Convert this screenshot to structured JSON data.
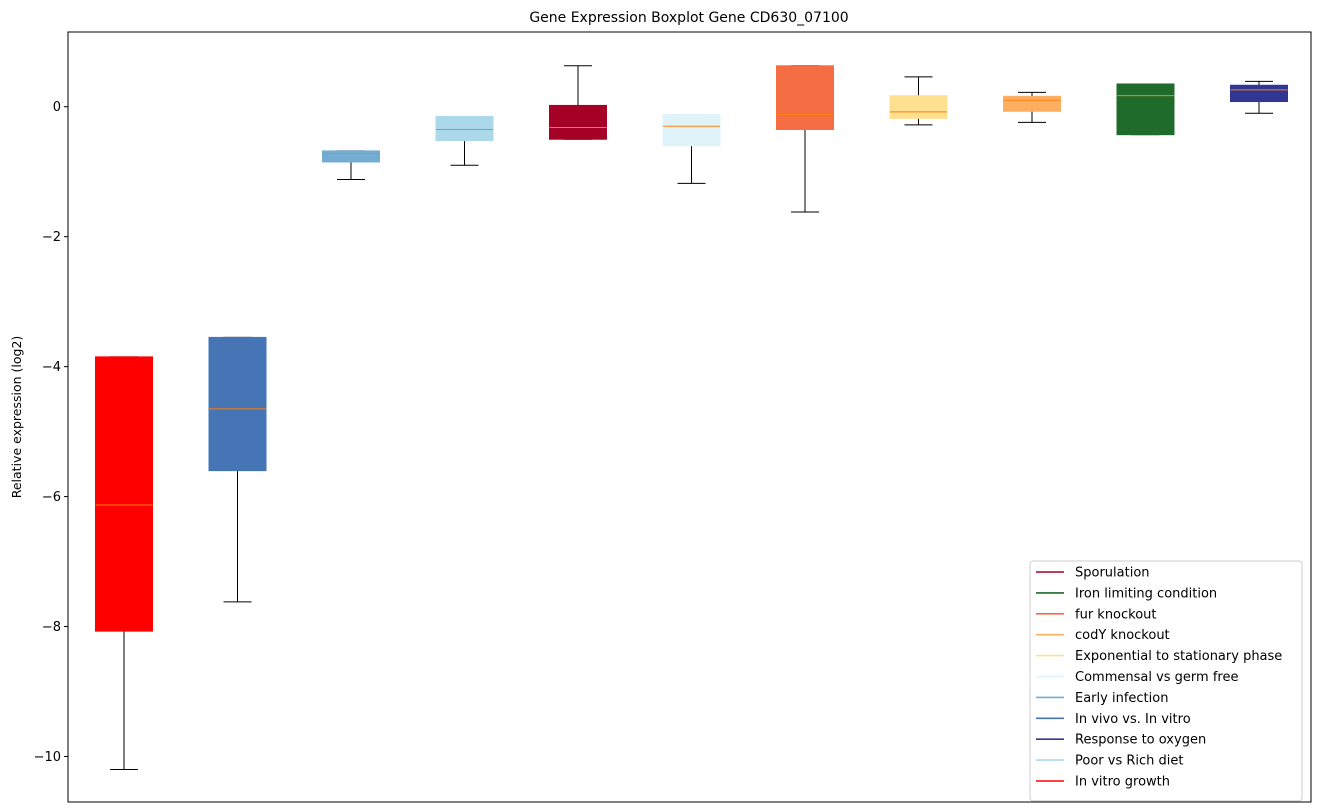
{
  "chart_data": {
    "type": "box",
    "title": "Gene Expression Boxplot Gene CD630_07100",
    "xlabel": "",
    "ylabel": "Relative expression (log2)",
    "ylim": [
      -10.7,
      1.15
    ],
    "yticks": [
      0,
      -2,
      -4,
      -6,
      -8,
      -10
    ],
    "ytick_labels": [
      "0",
      "−2",
      "−4",
      "−6",
      "−8",
      "−10"
    ],
    "median_color": "#ff7f0e",
    "legend_position": "lower right",
    "boxes": [
      {
        "group": "In vitro growth",
        "color": "#ff0000",
        "whislo": -10.2,
        "q1": -8.07,
        "med": -6.13,
        "q3": -3.85,
        "whishi": -3.85
      },
      {
        "group": "In vivo vs. In vitro",
        "color": "#4575b4",
        "whislo": -7.62,
        "q1": -5.6,
        "med": -4.65,
        "q3": -3.55,
        "whishi": -3.55
      },
      {
        "group": "Early infection",
        "color": "#74add1",
        "whislo": -1.12,
        "q1": -0.85,
        "med": -0.72,
        "q3": -0.68,
        "whishi": -0.68
      },
      {
        "group": "Poor vs Rich diet",
        "color": "#abd9e9",
        "whislo": -0.9,
        "q1": -0.52,
        "med": -0.35,
        "q3": -0.15,
        "whishi": -0.15
      },
      {
        "group": "Sporulation",
        "color": "#a50026",
        "whislo": -0.5,
        "q1": -0.5,
        "med": -0.32,
        "q3": 0.02,
        "whishi": 0.63
      },
      {
        "group": "Commensal vs germ free",
        "color": "#e0f3f8",
        "whislo": -1.18,
        "q1": -0.6,
        "med": -0.3,
        "q3": -0.12,
        "whishi": -0.12
      },
      {
        "group": "fur knockout",
        "color": "#f46d43",
        "whislo": -1.62,
        "q1": -0.35,
        "med": -0.12,
        "q3": 0.63,
        "whishi": 0.63
      },
      {
        "group": "Exponential to stationary phase",
        "color": "#fee090",
        "whislo": -0.28,
        "q1": -0.18,
        "med": -0.08,
        "q3": 0.17,
        "whishi": 0.46
      },
      {
        "group": "codY knockout",
        "color": "#fdae61",
        "whislo": -0.24,
        "q1": -0.07,
        "med": 0.1,
        "q3": 0.16,
        "whishi": 0.22
      },
      {
        "group": "Iron limiting condition",
        "color": "#1f6b2b",
        "whislo": -0.43,
        "q1": -0.43,
        "med": 0.17,
        "q3": 0.35,
        "whishi": 0.35
      },
      {
        "group": "Response to oxygen",
        "color": "#313695",
        "whislo": -0.1,
        "q1": 0.08,
        "med": 0.26,
        "q3": 0.33,
        "whishi": 0.39
      }
    ],
    "legend": [
      {
        "label": "Sporulation",
        "color": "#a50026"
      },
      {
        "label": "Iron limiting condition",
        "color": "#1f6b2b"
      },
      {
        "label": "fur knockout",
        "color": "#f46d43"
      },
      {
        "label": "codY knockout",
        "color": "#fdae61"
      },
      {
        "label": "Exponential to stationary phase",
        "color": "#fee090"
      },
      {
        "label": "Commensal vs germ free",
        "color": "#e0f3f8"
      },
      {
        "label": "Early infection",
        "color": "#74add1"
      },
      {
        "label": "In vivo vs. In vitro",
        "color": "#4575b4"
      },
      {
        "label": "Response to oxygen",
        "color": "#313695"
      },
      {
        "label": "Poor vs Rich diet",
        "color": "#abd9e9"
      },
      {
        "label": "In vitro growth",
        "color": "#ff0000"
      }
    ]
  }
}
